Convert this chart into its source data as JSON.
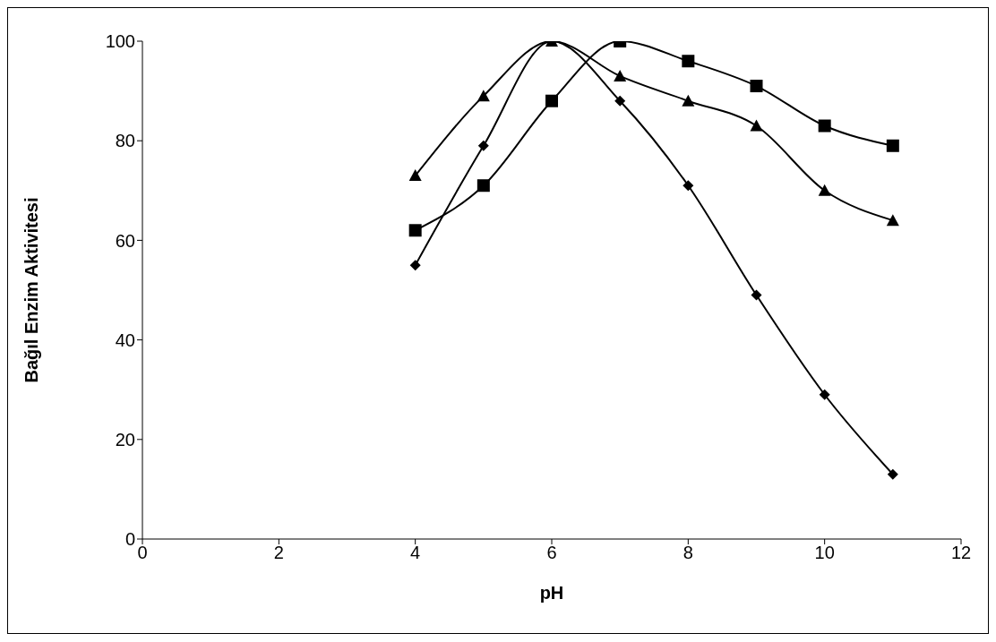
{
  "chart_data": {
    "type": "line",
    "xlabel": "pH",
    "ylabel": "Bağıl Enzim Aktivitesi",
    "x": [
      4,
      5,
      6,
      7,
      8,
      9,
      10,
      11
    ],
    "series": [
      {
        "color": "#000000",
        "marker": "diamond",
        "values": [
          55,
          79,
          100,
          88,
          71,
          49,
          29,
          13
        ]
      },
      {
        "color": "#000000",
        "marker": "square",
        "values": [
          62,
          71,
          88,
          100,
          96,
          91,
          83,
          79
        ]
      },
      {
        "color": "#000000",
        "marker": "triangle",
        "values": [
          73,
          89,
          100,
          93,
          88,
          83,
          70,
          64
        ]
      }
    ],
    "xlim": [
      0,
      12
    ],
    "xticks": [
      0,
      2,
      4,
      6,
      8,
      10,
      12
    ],
    "ylim": [
      0,
      100
    ],
    "yticks": [
      0,
      20,
      40,
      60,
      80,
      100
    ],
    "line_style": "solid"
  }
}
